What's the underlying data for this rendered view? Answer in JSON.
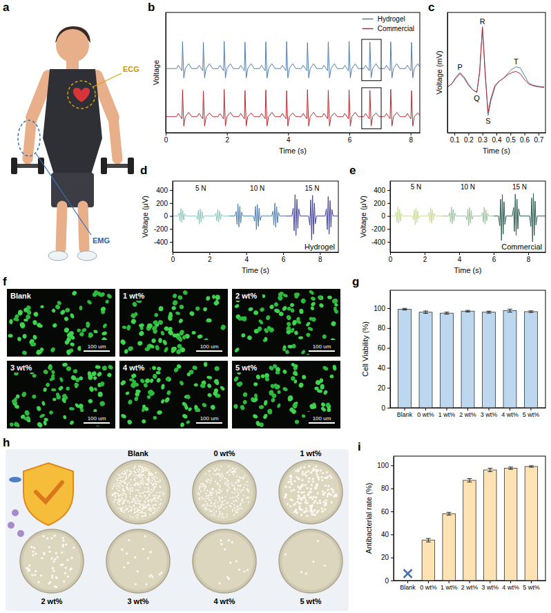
{
  "panel_letters": [
    "a",
    "b",
    "c",
    "d",
    "e",
    "f",
    "g",
    "h",
    "i"
  ],
  "illustration": {
    "ecg_label": "ECG",
    "emg_label": "EMG"
  },
  "images": {
    "labels": [
      "Blank",
      "1 wt%",
      "2 wt%",
      "3 wt%",
      "4 wt%",
      "5 wt%"
    ],
    "scale_bar": "100 um"
  },
  "plates": {
    "labels": [
      "Blank",
      "0 wt%",
      "1 wt%",
      "2 wt%",
      "3 wt%",
      "4 wt%",
      "5 wt%"
    ]
  },
  "chart_data": [
    {
      "type": "line",
      "x_label": "Time (s)",
      "y_label": "Voltage",
      "x": [
        0,
        0.35,
        0.41,
        0.48,
        0.53,
        0.55,
        0.59,
        0.64,
        0.75,
        0.85,
        1.03,
        1.09,
        1.16,
        1.21,
        1.23,
        1.27,
        1.32,
        1.43,
        1.53,
        1.71,
        1.77,
        1.84,
        1.89,
        1.91,
        1.95,
        2.0,
        2.11,
        2.21,
        2.39,
        2.45,
        2.52,
        2.57,
        2.59,
        2.63,
        2.68,
        2.79,
        2.89,
        3.07,
        3.13,
        3.2,
        3.25,
        3.27,
        3.31,
        3.36,
        3.47,
        3.57,
        3.75,
        3.81,
        3.88,
        3.93,
        3.95,
        3.99,
        4.04,
        4.15,
        4.25,
        4.43,
        4.49,
        4.56,
        4.61,
        4.63,
        4.67,
        4.72,
        4.83,
        4.93,
        5.11,
        5.17,
        5.24,
        5.29,
        5.31,
        5.35,
        5.4,
        5.51,
        5.61,
        5.79,
        5.85,
        5.92,
        5.97,
        5.99,
        6.03,
        6.08,
        6.19,
        6.29,
        6.47,
        6.53,
        6.6,
        6.65,
        6.67,
        6.71,
        6.76,
        6.87,
        6.97,
        7.15,
        7.21,
        7.28,
        7.33,
        7.35,
        7.39,
        7.44,
        7.55,
        7.65,
        7.83,
        7.89,
        7.96,
        8.01,
        8.03,
        8.07,
        8.12,
        8.23,
        8.33
      ],
      "series": [
        {
          "name": "Hydrogel",
          "color": "#4f7cac",
          "values": [
            1.8,
            1.8,
            1.92,
            1.8,
            1.72,
            2.8,
            1.45,
            1.8,
            1.98,
            1.8,
            1.8,
            1.92,
            1.8,
            1.72,
            2.78,
            1.45,
            1.8,
            1.98,
            1.8,
            1.8,
            1.92,
            1.8,
            1.72,
            2.82,
            1.45,
            1.8,
            1.98,
            1.8,
            1.8,
            1.92,
            1.8,
            1.72,
            2.79,
            1.45,
            1.8,
            1.98,
            1.8,
            1.8,
            1.92,
            1.8,
            1.72,
            2.8,
            1.45,
            1.8,
            1.98,
            1.8,
            1.8,
            1.92,
            1.8,
            1.72,
            2.81,
            1.45,
            1.8,
            1.98,
            1.8,
            1.8,
            1.92,
            1.8,
            1.72,
            2.77,
            1.45,
            1.8,
            1.98,
            1.8,
            1.8,
            1.92,
            1.8,
            1.72,
            2.8,
            1.45,
            1.8,
            1.98,
            1.8,
            1.8,
            1.92,
            1.8,
            1.72,
            2.82,
            1.45,
            1.8,
            1.98,
            1.8,
            1.8,
            1.92,
            1.8,
            1.72,
            2.79,
            1.45,
            1.8,
            1.98,
            1.8,
            1.8,
            1.92,
            1.8,
            1.72,
            2.8,
            1.45,
            1.8,
            1.98,
            1.8,
            1.8,
            1.92,
            1.8,
            1.72,
            2.78,
            1.45,
            1.8,
            1.98,
            1.8
          ]
        },
        {
          "name": "Commercial",
          "color": "#b22a2e",
          "values": [
            0,
            0,
            0.12,
            0,
            -0.08,
            1.0,
            -0.35,
            0,
            0.16,
            0,
            0,
            0.12,
            0,
            -0.08,
            0.96,
            -0.35,
            0,
            0.14,
            0,
            0,
            0.12,
            0,
            -0.08,
            1.02,
            -0.35,
            0,
            0.16,
            0,
            0,
            0.12,
            0,
            -0.08,
            0.98,
            -0.35,
            0,
            0.14,
            0,
            0,
            0.12,
            0,
            -0.08,
            1.0,
            -0.35,
            0,
            0.16,
            0,
            0,
            0.12,
            0,
            -0.08,
            0.97,
            -0.35,
            0,
            0.14,
            0,
            0,
            0.12,
            0,
            -0.08,
            1.01,
            -0.35,
            0,
            0.16,
            0,
            0,
            0.12,
            0,
            -0.08,
            0.99,
            -0.35,
            0,
            0.14,
            0,
            0,
            0.12,
            0,
            -0.08,
            1.0,
            -0.35,
            0,
            0.16,
            0,
            0,
            0.12,
            0,
            -0.08,
            0.98,
            -0.35,
            0,
            0.14,
            0,
            0,
            0.12,
            0,
            -0.08,
            1.02,
            -0.35,
            0,
            0.16,
            0,
            0,
            0.12,
            0,
            -0.08,
            0.97,
            -0.35,
            0,
            0.14,
            0
          ]
        }
      ],
      "xlim": [
        0,
        8.3
      ],
      "xticks": [
        0,
        2,
        4,
        6,
        8
      ],
      "ylim": [
        -0.6,
        3.9
      ],
      "tick_labels": "x",
      "legend": "upper right"
    },
    {
      "type": "line",
      "x_label": "Time (s)",
      "y_label": "Voltage (mV)",
      "x": [
        0.05,
        0.08,
        0.11,
        0.14,
        0.17,
        0.2,
        0.23,
        0.26,
        0.28,
        0.3,
        0.32,
        0.34,
        0.36,
        0.39,
        0.42,
        0.45,
        0.48,
        0.51,
        0.54,
        0.57,
        0.6,
        0.63,
        0.66,
        0.7,
        0.74
      ],
      "series": [
        {
          "color": "#4f7cac",
          "values": [
            -0.05,
            0,
            0.12,
            0.2,
            0.12,
            0,
            -0.1,
            -0.15,
            0.2,
            1.0,
            0.2,
            -0.55,
            -0.3,
            -0.05,
            0.05,
            0.1,
            0.18,
            0.26,
            0.3,
            0.28,
            0.15,
            0.02,
            -0.02,
            -0.04,
            -0.05
          ]
        },
        {
          "color": "#b22a2e",
          "values": [
            -0.05,
            0,
            0.1,
            0.18,
            0.1,
            -0.02,
            -0.1,
            -0.14,
            0.22,
            0.98,
            0.15,
            -0.5,
            -0.25,
            -0.02,
            0.05,
            0.1,
            0.16,
            0.2,
            0.22,
            0.18,
            0.08,
            0,
            -0.03,
            -0.05,
            -0.06
          ]
        }
      ],
      "annotations": [
        {
          "text": "P",
          "x": 0.14
        },
        {
          "text": "Q",
          "x": 0.26
        },
        {
          "text": "R",
          "x": 0.3
        },
        {
          "text": "S",
          "x": 0.34
        },
        {
          "text": "T",
          "x": 0.54
        }
      ],
      "xlim": [
        0.05,
        0.75
      ],
      "xticks": [
        0.1,
        0.2,
        0.3,
        0.4,
        0.5,
        0.6,
        0.7
      ],
      "ylim": [
        -0.85,
        1.25
      ],
      "tick_labels": "x"
    },
    {
      "type": "line",
      "title": "Hydrogel",
      "x_label": "Time (s)",
      "y_label": "Voltage (μV)",
      "series": [
        {
          "name": "5 N",
          "color": "#8cc7bd",
          "x": [
            0,
            0.28,
            0.35,
            0.4,
            0.45,
            0.5,
            0.55,
            0.6,
            0.65,
            0.72,
            1.28,
            1.35,
            1.4,
            1.45,
            1.5,
            1.55,
            1.6,
            1.65,
            1.72,
            2.28,
            2.35,
            2.4,
            2.45,
            2.5,
            2.55,
            2.6,
            2.65,
            2.72,
            3.05
          ],
          "values": [
            0,
            0,
            45,
            -80,
            115,
            -100,
            85,
            -60,
            35,
            0,
            0,
            -50,
            90,
            -125,
            105,
            -95,
            70,
            -40,
            0,
            0,
            40,
            -75,
            100,
            -95,
            80,
            -55,
            30,
            0,
            0
          ]
        },
        {
          "name": "10 N",
          "color": "#4f7fae",
          "x": [
            3.05,
            3.38,
            3.45,
            3.5,
            3.55,
            3.6,
            3.65,
            3.7,
            3.75,
            3.82,
            4.38,
            4.45,
            4.5,
            4.55,
            4.6,
            4.65,
            4.7,
            4.75,
            4.82,
            5.38,
            5.45,
            5.5,
            5.55,
            5.6,
            5.65,
            5.7,
            5.75,
            5.82,
            6.15
          ],
          "values": [
            0,
            0,
            70,
            -130,
            190,
            -170,
            150,
            -110,
            60,
            0,
            0,
            -80,
            150,
            -210,
            180,
            -160,
            120,
            -70,
            0,
            0,
            75,
            -140,
            200,
            -175,
            145,
            -105,
            55,
            0,
            0
          ]
        },
        {
          "name": "15 N",
          "color": "#45459a",
          "x": [
            6.15,
            6.48,
            6.55,
            6.6,
            6.65,
            6.7,
            6.75,
            6.8,
            6.85,
            6.92,
            7.38,
            7.45,
            7.5,
            7.55,
            7.6,
            7.65,
            7.7,
            7.75,
            7.82,
            8.28,
            8.35,
            8.4,
            8.45,
            8.5,
            8.55,
            8.6,
            8.65,
            8.72,
            9
          ],
          "values": [
            0,
            0,
            120,
            -230,
            330,
            -300,
            260,
            -190,
            110,
            0,
            0,
            -140,
            250,
            -370,
            320,
            -280,
            200,
            -120,
            0,
            0,
            110,
            -210,
            300,
            -280,
            240,
            -170,
            100,
            0,
            0
          ]
        }
      ],
      "xlim": [
        0,
        9
      ],
      "xticks": [
        0,
        2,
        4,
        6,
        8
      ],
      "ylim": [
        -560,
        540
      ],
      "yticks": [
        -400,
        -200,
        0,
        200,
        400
      ]
    },
    {
      "type": "line",
      "title": "Commercial",
      "x_label": "Time (s)",
      "y_label": "Voltage (μV)",
      "series": [
        {
          "name": "5 N",
          "color": "#c9dc98",
          "x": [
            0,
            0.28,
            0.35,
            0.4,
            0.45,
            0.5,
            0.55,
            0.6,
            0.65,
            0.72,
            1.28,
            1.35,
            1.4,
            1.45,
            1.5,
            1.55,
            1.6,
            1.65,
            1.72,
            2.18,
            2.25,
            2.3,
            2.35,
            2.4,
            2.45,
            2.5,
            2.55,
            2.62,
            3
          ],
          "values": [
            0,
            0,
            60,
            -100,
            140,
            -120,
            105,
            -80,
            45,
            0,
            0,
            -55,
            95,
            -135,
            125,
            -100,
            75,
            -40,
            0,
            0,
            50,
            -90,
            125,
            -110,
            95,
            -70,
            40,
            0,
            0
          ]
        },
        {
          "name": "10 N",
          "color": "#9fc2a3",
          "x": [
            3,
            3.38,
            3.45,
            3.5,
            3.55,
            3.6,
            3.65,
            3.7,
            3.75,
            3.82,
            4.38,
            4.45,
            4.5,
            4.55,
            4.6,
            4.65,
            4.7,
            4.75,
            4.82,
            5.28,
            5.35,
            5.4,
            5.45,
            5.5,
            5.55,
            5.6,
            5.65,
            5.72,
            6
          ],
          "values": [
            0,
            0,
            50,
            -95,
            140,
            -120,
            100,
            -80,
            45,
            0,
            0,
            -60,
            105,
            -150,
            130,
            -110,
            85,
            -50,
            0,
            0,
            55,
            -100,
            135,
            -125,
            95,
            -75,
            40,
            0,
            0
          ]
        },
        {
          "name": "15 N",
          "color": "#2f5d55",
          "x": [
            6,
            6.28,
            6.35,
            6.4,
            6.45,
            6.5,
            6.55,
            6.6,
            6.65,
            6.72,
            7.08,
            7.15,
            7.2,
            7.25,
            7.3,
            7.35,
            7.4,
            7.45,
            7.52,
            8.08,
            8.15,
            8.2,
            8.25,
            8.3,
            8.35,
            8.4,
            8.45,
            8.52,
            9
          ],
          "values": [
            0,
            0,
            -150,
            260,
            -380,
            330,
            -280,
            220,
            -130,
            0,
            0,
            130,
            -240,
            340,
            -300,
            260,
            -200,
            110,
            0,
            0,
            -160,
            280,
            -400,
            350,
            -300,
            230,
            -140,
            0,
            0
          ]
        }
      ],
      "xlim": [
        0,
        9
      ],
      "xticks": [
        0,
        2,
        4,
        6,
        8
      ],
      "ylim": [
        -560,
        540
      ],
      "yticks": [
        -400,
        -200,
        0,
        200,
        400
      ]
    },
    {
      "type": "bar",
      "y_label": "Cell Viability (%)",
      "categories": [
        "Blank",
        "0 wt%",
        "1 wt%",
        "2 wt%",
        "3 wt%",
        "4 wt%",
        "5 wt%"
      ],
      "values": [
        99,
        96,
        95,
        97,
        96,
        97.5,
        96.5
      ],
      "errors": [
        0.8,
        1.2,
        1,
        0.8,
        1,
        1.5,
        0.8
      ],
      "color": "#bdd7ee",
      "ylim": [
        0,
        118
      ],
      "yticks": [
        0,
        20,
        40,
        60,
        80,
        100
      ]
    },
    {
      "type": "bar",
      "y_label": "Antibacterial rate (%)",
      "categories": [
        "Blank",
        "0 wt%",
        "1 wt%",
        "2 wt%",
        "3 wt%",
        "4 wt%",
        "5 wt%"
      ],
      "values": [
        null,
        35,
        58,
        87,
        96,
        97.5,
        99
      ],
      "errors": [
        null,
        1.5,
        1.2,
        1.5,
        1.5,
        1,
        0.6
      ],
      "color": "#fde2b4",
      "ylim": [
        0,
        108
      ],
      "yticks": [
        0,
        20,
        40,
        60,
        80,
        100
      ]
    }
  ]
}
